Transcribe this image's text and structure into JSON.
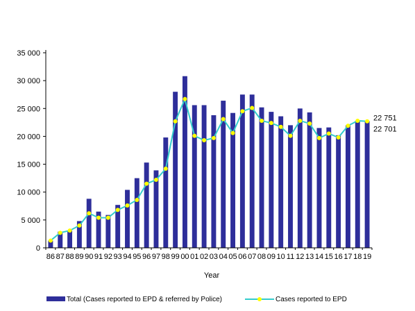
{
  "chart_data": {
    "type": "bar",
    "title": "",
    "xlabel": "Year",
    "ylabel": "",
    "ylim": [
      0,
      35000
    ],
    "yticks": [
      0,
      5000,
      10000,
      15000,
      20000,
      25000,
      30000,
      35000
    ],
    "ytick_labels": [
      "0",
      "5 000",
      "10 000",
      "15 000",
      "20 000",
      "25 000",
      "30 000",
      "35 000"
    ],
    "grid": false,
    "legend_position": "bottom",
    "categories": [
      "86",
      "87",
      "88",
      "89",
      "90",
      "91",
      "92",
      "93",
      "94",
      "95",
      "96",
      "97",
      "98",
      "99",
      "00",
      "01",
      "02",
      "03",
      "04",
      "05",
      "06",
      "07",
      "08",
      "09",
      "10",
      "11",
      "12",
      "13",
      "14",
      "15",
      "16",
      "17",
      "18",
      "19"
    ],
    "series": [
      {
        "name": "Total (Cases reported to EPD & referred by Police)",
        "kind": "bar",
        "color": "#2E2E9A",
        "values": [
          1300,
          2900,
          3100,
          4800,
          8800,
          6500,
          5900,
          7700,
          10400,
          12500,
          15300,
          13900,
          19800,
          28000,
          30800,
          25600,
          25600,
          23800,
          26400,
          24200,
          27500,
          27500,
          25200,
          24400,
          23600,
          22000,
          25000,
          24300,
          21500,
          21600,
          20200,
          22000,
          22800,
          22751
        ]
      },
      {
        "name": "Cases reported to EPD",
        "kind": "line",
        "color": "#33CCCC",
        "marker_color": "#FFFF00",
        "values": [
          1300,
          2700,
          3100,
          4000,
          6200,
          5400,
          5400,
          6800,
          7600,
          8600,
          11500,
          12200,
          14200,
          22700,
          26700,
          20100,
          19300,
          19700,
          23100,
          20600,
          24500,
          25100,
          22800,
          22400,
          21700,
          20100,
          22800,
          22300,
          19700,
          20500,
          19800,
          21900,
          22800,
          22701
        ]
      }
    ],
    "annotations": [
      {
        "series": 0,
        "index": 33,
        "text": "22 751"
      },
      {
        "series": 1,
        "index": 33,
        "text": "22 701"
      }
    ]
  }
}
